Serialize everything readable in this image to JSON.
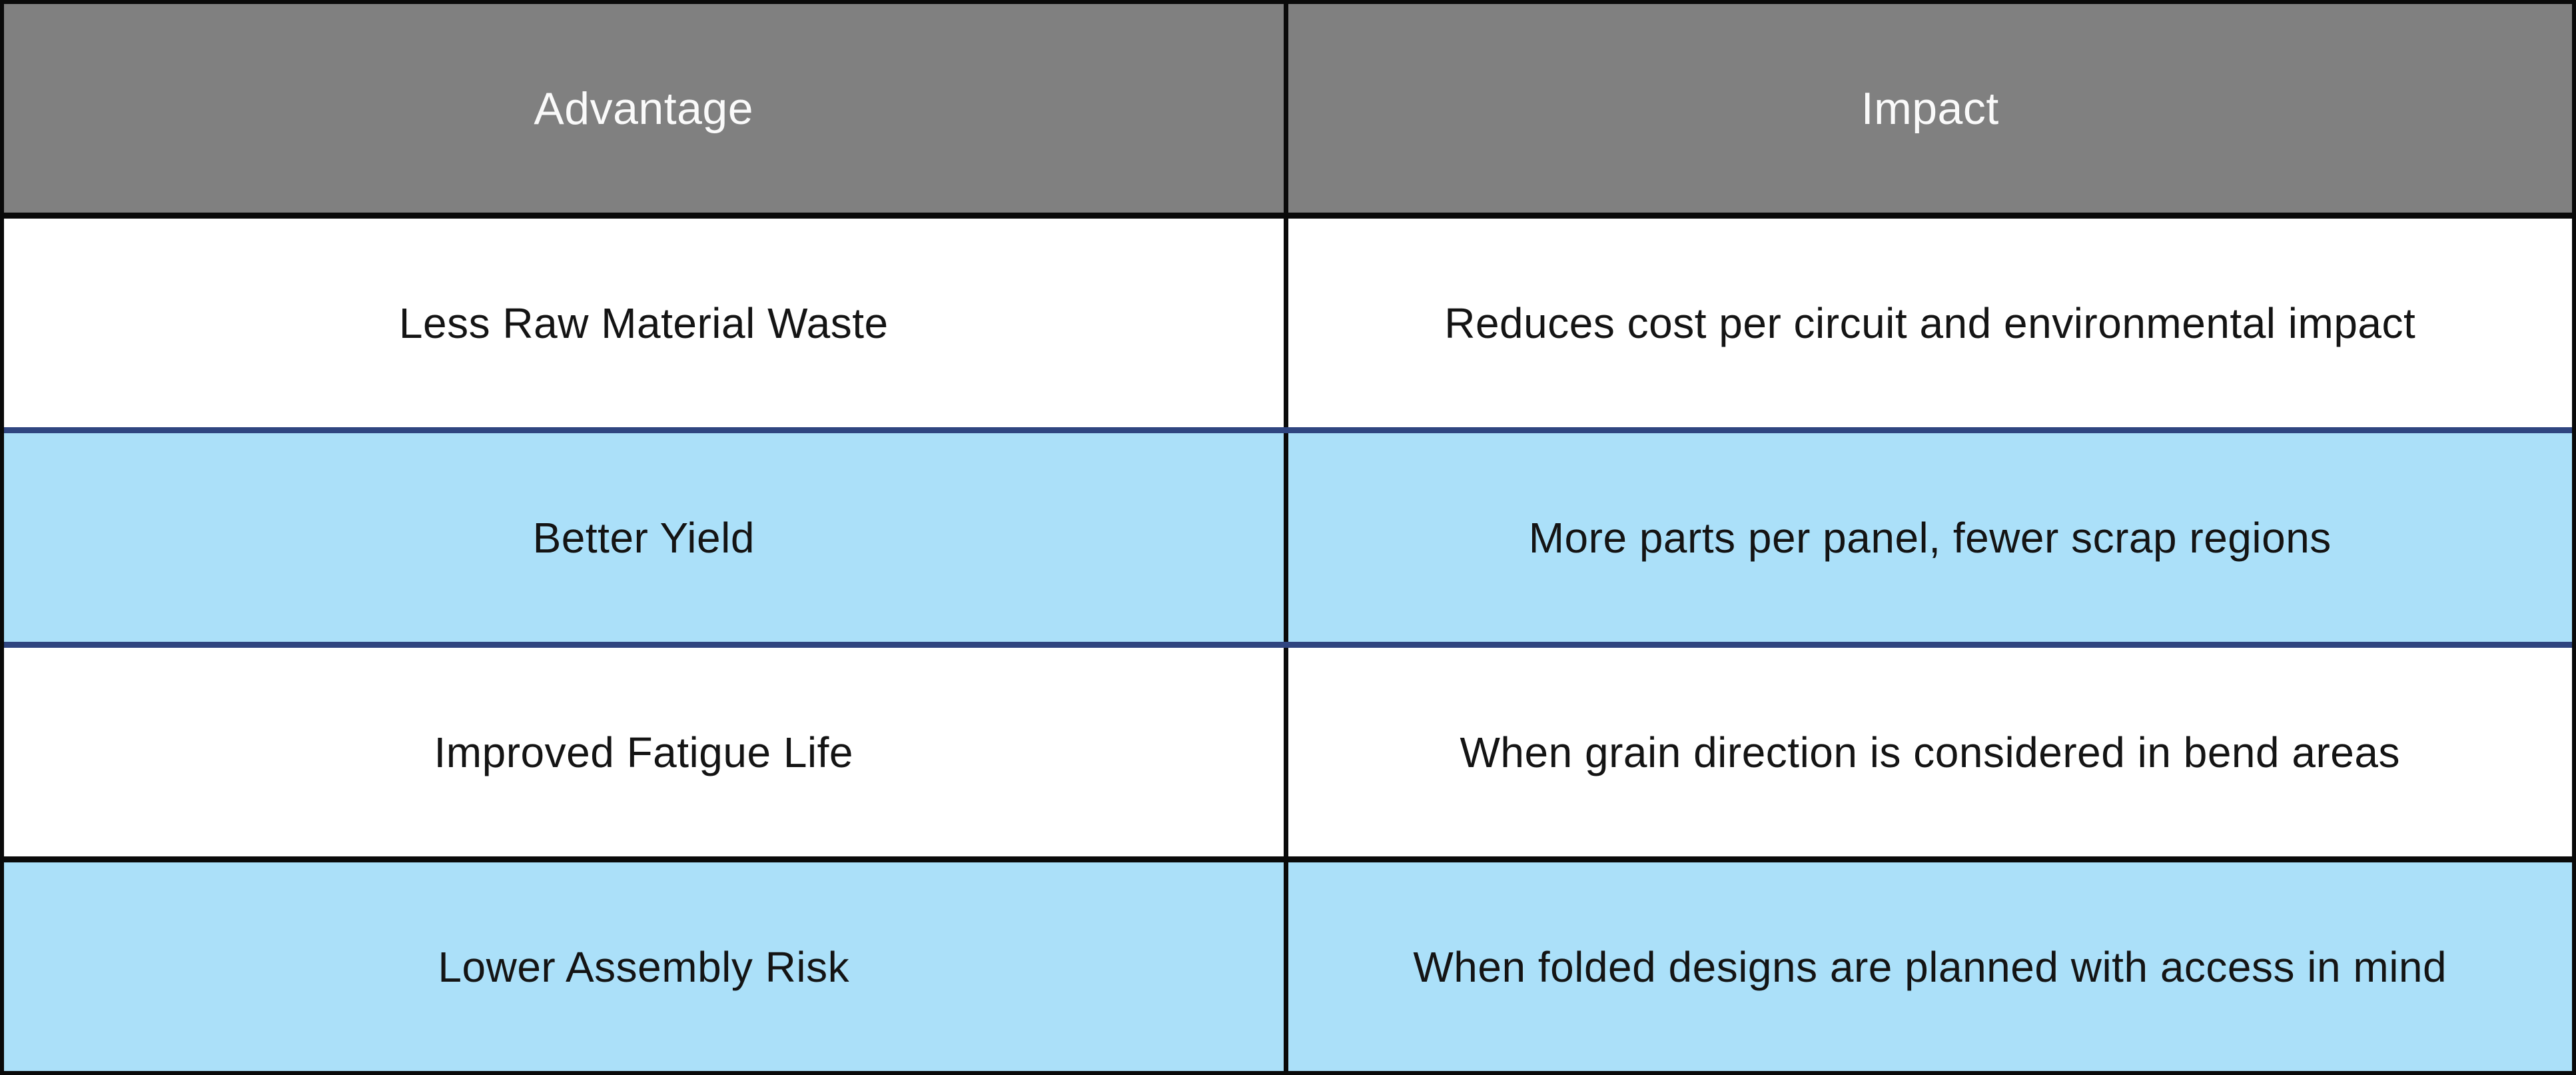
{
  "table": {
    "columns": [
      {
        "label": "Advantage"
      },
      {
        "label": "Impact"
      }
    ],
    "rows": [
      {
        "advantage": "Less Raw Material Waste",
        "impact": "Reduces cost per circuit and environmental impact"
      },
      {
        "advantage": "Better Yield",
        "impact": "More parts per panel, fewer scrap regions"
      },
      {
        "advantage": "Improved Fatigue Life",
        "impact": "When grain direction is considered in bend areas"
      },
      {
        "advantage": "Lower Assembly Risk",
        "impact": "When folded designs are planned with access in mind"
      }
    ],
    "colors": {
      "header_bg": "#808080",
      "header_text": "#fafafa",
      "row_alt_bg": "#abe0f9",
      "row_bg": "#ffffff",
      "body_text": "#141414",
      "rule_black": "#0a0a0a",
      "rule_navy": "#2f4580"
    }
  }
}
